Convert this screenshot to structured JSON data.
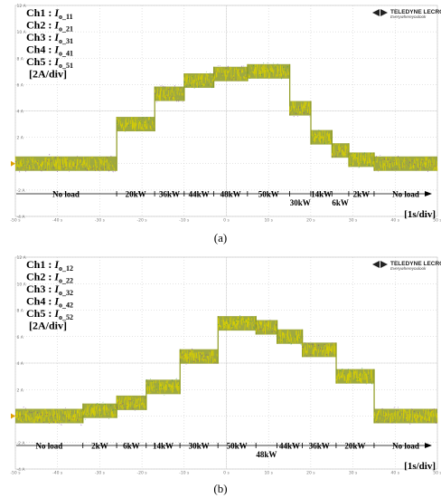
{
  "brand": {
    "name": "TELEDYNE LECROY",
    "tagline": "Everywhereyoulook"
  },
  "time_scale": "[1s/div]",
  "colors": {
    "ch_yellow": "#d9cf00",
    "ch_olive": "#8e9a1e",
    "ch_purple": "#7a2fa8",
    "ch_green": "#2a9a45",
    "grid": "#c8c8c8",
    "zero_marker": "#e0a000"
  },
  "chart_data": [
    {
      "type": "line",
      "caption": "(a)",
      "time_scale": "[1s/div]",
      "y_unit_label": "[2A/div]",
      "x_tick_labels": [
        "-50 s",
        "-40 s",
        "-30 s",
        "-20 s",
        "-10 s",
        "0 s",
        "10 s",
        "20 s",
        "30 s",
        "40 s",
        "50 s"
      ],
      "y_tick_labels": [
        "12 A",
        "10 A",
        "8 A",
        "6 A",
        "4 A",
        "2 A",
        "0 A",
        "-2 A",
        "-4 A"
      ],
      "xlim": [
        -50,
        50
      ],
      "ylim": [
        -4,
        12
      ],
      "channels": [
        {
          "ch": "Ch1",
          "sym": "I",
          "sub": "o_11"
        },
        {
          "ch": "Ch2",
          "sym": "I",
          "sub": "o_21"
        },
        {
          "ch": "Ch3",
          "sym": "I",
          "sub": "o_31"
        },
        {
          "ch": "Ch4",
          "sym": "I",
          "sub": "o_41"
        },
        {
          "ch": "Ch5",
          "sym": "I",
          "sub": "o_51"
        }
      ],
      "segments": [
        {
          "label": "No load",
          "x0": -50,
          "x1": -26,
          "level": 0.0
        },
        {
          "label": "20kW",
          "x0": -26,
          "x1": -17,
          "level": 3.0
        },
        {
          "label": "36kW",
          "x0": -17,
          "x1": -10,
          "level": 5.3
        },
        {
          "label": "44kW",
          "x0": -10,
          "x1": -3,
          "level": 6.3
        },
        {
          "label": "48kW",
          "x0": -3,
          "x1": 5,
          "level": 6.8
        },
        {
          "label": "50kW",
          "x0": 5,
          "x1": 15,
          "level": 7.0
        },
        {
          "label": "30kW",
          "x0": 15,
          "x1": 20,
          "level": 4.2
        },
        {
          "label": "14kW",
          "x0": 20,
          "x1": 25,
          "level": 2.0
        },
        {
          "label": "6kW",
          "x0": 25,
          "x1": 29,
          "level": 1.0
        },
        {
          "label": "2kW",
          "x0": 29,
          "x1": 35,
          "level": 0.3
        },
        {
          "label": "No load",
          "x0": 35,
          "x1": 50,
          "level": 0.0
        }
      ]
    },
    {
      "type": "line",
      "caption": "(b)",
      "time_scale": "[1s/div]",
      "y_unit_label": "[2A/div]",
      "x_tick_labels": [
        "-50 s",
        "-40 s",
        "-30 s",
        "-20 s",
        "-10 s",
        "0 s",
        "10 s",
        "20 s",
        "30 s",
        "40 s",
        "50 s"
      ],
      "y_tick_labels": [
        "12 A",
        "10 A",
        "8 A",
        "6 A",
        "4 A",
        "2 A",
        "0 A",
        "-2 A",
        "-4 A"
      ],
      "xlim": [
        -50,
        50
      ],
      "ylim": [
        -4,
        12
      ],
      "channels": [
        {
          "ch": "Ch1",
          "sym": "I",
          "sub": "o_12"
        },
        {
          "ch": "Ch2",
          "sym": "I",
          "sub": "o_22"
        },
        {
          "ch": "Ch3",
          "sym": "I",
          "sub": "o_32"
        },
        {
          "ch": "Ch4",
          "sym": "I",
          "sub": "o_42"
        },
        {
          "ch": "Ch5",
          "sym": "I",
          "sub": "o_52"
        }
      ],
      "segments": [
        {
          "label": "No load",
          "x0": -50,
          "x1": -34,
          "level": 0.0
        },
        {
          "label": "2kW",
          "x0": -34,
          "x1": -26,
          "level": 0.4
        },
        {
          "label": "6kW",
          "x0": -26,
          "x1": -19,
          "level": 1.0
        },
        {
          "label": "14kW",
          "x0": -19,
          "x1": -11,
          "level": 2.2
        },
        {
          "label": "30kW",
          "x0": -11,
          "x1": -2,
          "level": 4.5
        },
        {
          "label": "50kW",
          "x0": -2,
          "x1": 7,
          "level": 7.0
        },
        {
          "label": "48kW",
          "x0": 7,
          "x1": 12,
          "level": 6.7
        },
        {
          "label": "44kW",
          "x0": 12,
          "x1": 18,
          "level": 6.0
        },
        {
          "label": "36kW",
          "x0": 18,
          "x1": 26,
          "level": 5.0
        },
        {
          "label": "20kW",
          "x0": 26,
          "x1": 35,
          "level": 3.0
        },
        {
          "label": "No load",
          "x0": 35,
          "x1": 50,
          "level": 0.0
        }
      ]
    }
  ]
}
